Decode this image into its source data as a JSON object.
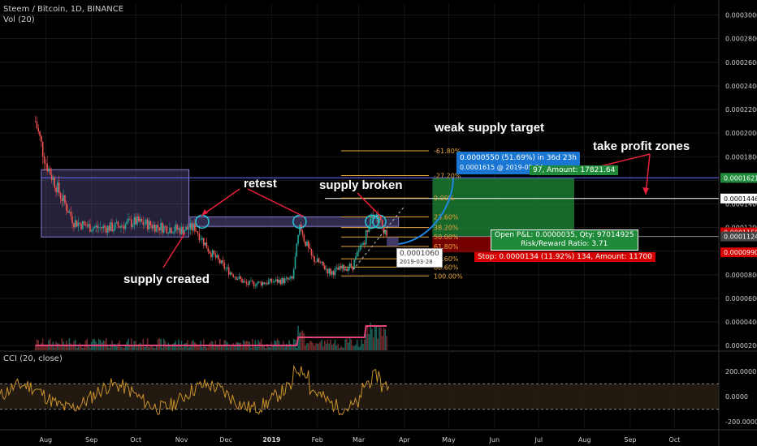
{
  "header": {
    "symbol_line": "Steem / Bitcoin, 1D, BINANCE",
    "volume_line": "Vol (20)",
    "cci_line": "CCI (20, close)"
  },
  "annotations": {
    "weak_supply_target": "weak supply target",
    "take_profit_zones": "take profit zones",
    "retest": "retest",
    "supply_broken": "supply broken",
    "supply_created": "supply created"
  },
  "measure_box": {
    "line1": "0.0000550 (51.69%) in 36d 23h",
    "line2": "0.0001615  @ 2019-05-04"
  },
  "target_box": {
    "text": "97, Amount: 17821.64"
  },
  "pnl_box": {
    "line1": "Open P&L: 0.0000035, Qty: 97014925",
    "line2": "Risk/Reward Ratio: 3.71"
  },
  "stop_box": {
    "text": "Stop: 0.0000134 (11.92%) 134, Amount: 11700"
  },
  "cursor_label": {
    "value": "0.0001060",
    "date": "2019-03-28"
  },
  "colors": {
    "background": "#000000",
    "price_up": "#26a69a",
    "price_down": "#ef5350",
    "fib": "#e8a33d",
    "zone": "#6a5fa8",
    "profit": "#1f8a3a",
    "loss": "#d50000",
    "arrow": "#e8203c",
    "volume_ma": "#e0457b",
    "cci_line": "#c8902a",
    "measure": "#1976d2"
  },
  "chart_data": {
    "type": "candlestick",
    "price_axis": {
      "ticks": [
        "0.0003000",
        "0.0002800",
        "0.0002600",
        "0.0002400",
        "0.0002200",
        "0.0002000",
        "0.0001800",
        "0.0001600",
        "0.0001400",
        "0.0001200",
        "0.0001000",
        "0.0000800",
        "0.0000600",
        "0.0000400",
        "0.0000200"
      ],
      "range": [
        1.6e-05,
        0.00031
      ]
    },
    "x_axis": {
      "labels": [
        "Aug",
        "Sep",
        "Oct",
        "Nov",
        "Dec",
        "2019",
        "Feb",
        "Mar",
        "Apr",
        "May",
        "Jun",
        "Jul",
        "Aug",
        "Sep",
        "Oct"
      ]
    },
    "price_series": [
      {
        "date": "2018-07-25",
        "close": 0.00021
      },
      {
        "date": "2018-08-01",
        "close": 0.000175
      },
      {
        "date": "2018-08-10",
        "close": 0.00015
      },
      {
        "date": "2018-08-20",
        "close": 0.000125
      },
      {
        "date": "2018-09-01",
        "close": 0.00012
      },
      {
        "date": "2018-09-15",
        "close": 0.00012
      },
      {
        "date": "2018-10-01",
        "close": 0.000125
      },
      {
        "date": "2018-10-15",
        "close": 0.000121
      },
      {
        "date": "2018-11-01",
        "close": 0.000118
      },
      {
        "date": "2018-11-10",
        "close": 0.00012
      },
      {
        "date": "2018-11-20",
        "close": 0.0001
      },
      {
        "date": "2018-12-01",
        "close": 8.5e-05
      },
      {
        "date": "2018-12-15",
        "close": 7.2e-05
      },
      {
        "date": "2019-01-01",
        "close": 7.4e-05
      },
      {
        "date": "2019-01-15",
        "close": 7.6e-05
      },
      {
        "date": "2019-01-20",
        "close": 0.00012
      },
      {
        "date": "2019-01-28",
        "close": 9.5e-05
      },
      {
        "date": "2019-02-10",
        "close": 8.2e-05
      },
      {
        "date": "2019-02-25",
        "close": 8.8e-05
      },
      {
        "date": "2019-03-05",
        "close": 0.00011
      },
      {
        "date": "2019-03-10",
        "close": 0.000135
      },
      {
        "date": "2019-03-14",
        "close": 0.000128
      },
      {
        "date": "2019-03-20",
        "close": 0.000115
      }
    ],
    "fibonacci_levels": [
      {
        "label": "-61.80%",
        "value": 0.000185
      },
      {
        "label": "-27.20%",
        "value": 0.000164
      },
      {
        "label": "0.00%",
        "value": 0.000145
      },
      {
        "label": "23.60%",
        "value": 0.000129
      },
      {
        "label": "38.20%",
        "value": 0.00012
      },
      {
        "label": "50.00%",
        "value": 0.000112
      },
      {
        "label": "61.80%",
        "value": 0.000104
      },
      {
        "label": "78.60%",
        "value": 9.35e-05
      },
      {
        "label": "88.60%",
        "value": 8.65e-05
      },
      {
        "label": "100.00%",
        "value": 7.9e-05
      }
    ],
    "supply_zone": {
      "top": 0.000169,
      "bottom": 0.000112,
      "start": "2018-07-29",
      "end": "2018-11-06"
    },
    "retest_band": {
      "top": 0.000129,
      "bottom": 0.000121,
      "start": "2018-11-06",
      "end": "2019-03-28"
    },
    "long_position": {
      "target": 0.0001621,
      "entry": 0.0001124,
      "stop": 9.9e-05,
      "start": "2019-04-20",
      "end": "2019-07-25"
    },
    "price_labels": [
      {
        "text": "0.0001621",
        "color": "#1f8a3a",
        "value": 0.0001621
      },
      {
        "text": "0.0001446",
        "color": "#ffffff",
        "value": 0.0001446
      },
      {
        "text": "0.0001159",
        "color": "#d50000",
        "value": 0.0001159
      },
      {
        "text": "0.0001124",
        "color": "#444444",
        "value": 0.0001124
      },
      {
        "text": "0.0000990",
        "color": "#d50000",
        "value": 9.9e-05
      }
    ],
    "cci": {
      "ticks": [
        "200.0000",
        "0.0000",
        "-200.0000"
      ],
      "range": [
        -250,
        250
      ],
      "upper_band": 100,
      "lower_band": -100
    }
  }
}
